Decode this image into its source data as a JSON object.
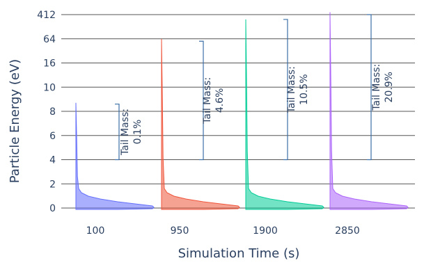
{
  "chart_data": {
    "type": "violin",
    "title": "",
    "xlabel": "Simulation Time (s)",
    "ylabel": "Particle Energy (eV)",
    "grid": true,
    "legend": "none",
    "categories": [
      "100",
      "950",
      "1900",
      "2850"
    ],
    "y_ticks": [
      "0",
      "2",
      "4",
      "6",
      "8",
      "10",
      "16",
      "64",
      "412"
    ],
    "series": [
      {
        "category": "100",
        "color": "#636efa",
        "max_tick_position": 4.35
      },
      {
        "category": "950",
        "color": "#ef553b",
        "max_tick_position": 7.0
      },
      {
        "category": "1900",
        "color": "#00cc96",
        "max_tick_position": 7.8
      },
      {
        "category": "2850",
        "color": "#ab63fa",
        "max_tick_position": 8.1
      }
    ],
    "annotations": [
      {
        "category": "100",
        "line1": "Tail Mass:",
        "line2": "0.1%",
        "bracket_top_tick": 4.3,
        "bracket_bottom_tick": 2.0
      },
      {
        "category": "950",
        "line1": "Tail Mass:",
        "line2": "4.6%",
        "bracket_top_tick": 6.9,
        "bracket_bottom_tick": 2.0
      },
      {
        "category": "1900",
        "line1": "Tail Mass:",
        "line2": "10.5%",
        "bracket_top_tick": 7.8,
        "bracket_bottom_tick": 2.0
      },
      {
        "category": "2850",
        "line1": "Tail Mass:",
        "line2": "20.9%",
        "bracket_top_tick": 8.0,
        "bracket_bottom_tick": 2.0
      }
    ]
  }
}
